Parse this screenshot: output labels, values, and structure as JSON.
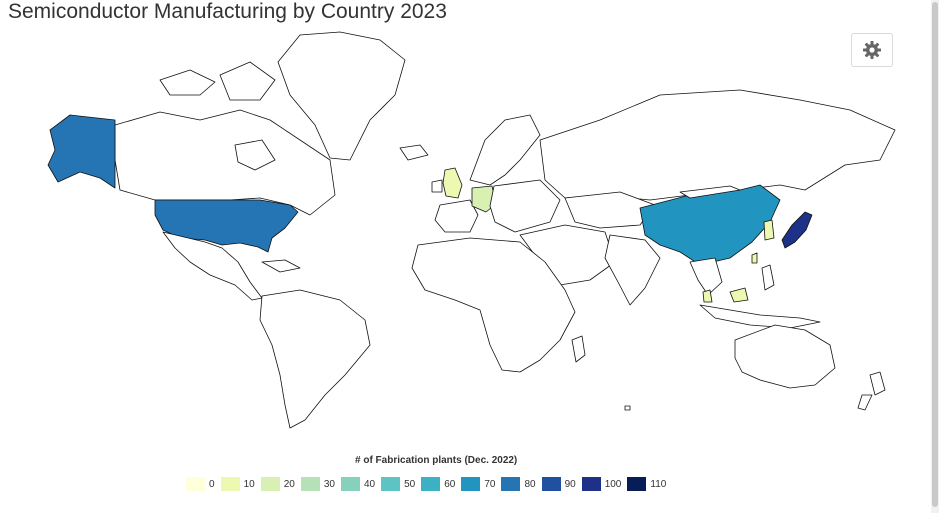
{
  "chart_data": {
    "type": "choropleth",
    "title": "Semiconductor Manufacturing by Country 2023",
    "legend_title": "# of Fabrication plants (Dec. 2022)",
    "legend_bins": [
      {
        "label": "0",
        "color": "#ffffd9"
      },
      {
        "label": "10",
        "color": "#edf8b1"
      },
      {
        "label": "20",
        "color": "#d9f0b3"
      },
      {
        "label": "30",
        "color": "#b4e2b6"
      },
      {
        "label": "40",
        "color": "#86d1bc"
      },
      {
        "label": "50",
        "color": "#5ec3c3"
      },
      {
        "label": "60",
        "color": "#3db1c4"
      },
      {
        "label": "70",
        "color": "#2195c0"
      },
      {
        "label": "80",
        "color": "#2575b5"
      },
      {
        "label": "90",
        "color": "#2250a1"
      },
      {
        "label": "100",
        "color": "#1c3187"
      },
      {
        "label": "110",
        "color": "#081d58"
      }
    ],
    "regions": [
      {
        "name": "United States",
        "value": 76,
        "color": "#2575b5"
      },
      {
        "name": "China",
        "value": 65,
        "color": "#2195c0"
      },
      {
        "name": "Japan",
        "value": 103,
        "color": "#1c3187"
      },
      {
        "name": "South Korea",
        "value": 10,
        "color": "#edf8b1"
      },
      {
        "name": "Taiwan",
        "value": 10,
        "color": "#edf8b1"
      },
      {
        "name": "Germany",
        "value": 18,
        "color": "#d9f0b3"
      },
      {
        "name": "United Kingdom",
        "value": 12,
        "color": "#edf8b1"
      },
      {
        "name": "Malaysia",
        "value": 8,
        "color": "#edf8b1"
      },
      {
        "name": "Singapore",
        "value": 8,
        "color": "#edf8b1"
      }
    ]
  },
  "toolbar": {
    "settings_icon": "gear-icon"
  }
}
